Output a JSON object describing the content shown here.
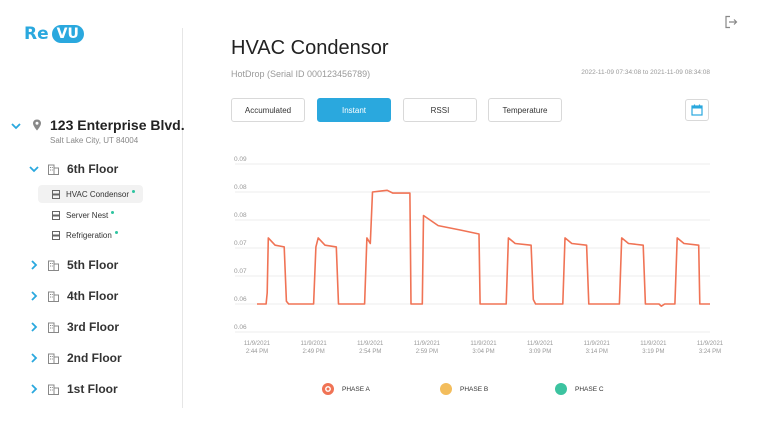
{
  "app": {
    "logo_prefix": "Re",
    "logo_badge": "VU"
  },
  "sidebar": {
    "building": {
      "name": "123 Enterprise Blvd.",
      "address": "Salt Lake City, UT 84004"
    },
    "floors": [
      {
        "label": "6th Floor",
        "expanded": true
      },
      {
        "label": "5th Floor"
      },
      {
        "label": "4th Floor"
      },
      {
        "label": "3rd Floor"
      },
      {
        "label": "2nd Floor"
      },
      {
        "label": "1st Floor"
      }
    ],
    "devices": [
      {
        "label": "HVAC Condensor",
        "active": true
      },
      {
        "label": "Server Nest"
      },
      {
        "label": "Refrigeration"
      }
    ]
  },
  "header": {
    "title": "HVAC Condensor",
    "subtitle": "HotDrop (Serial ID 000123456789)",
    "date_range": "2022-11-09 07:34:08 to 2021-11-09 08:34:08"
  },
  "tabs": [
    {
      "label": "Accumulated"
    },
    {
      "label": "Instant",
      "active": true
    },
    {
      "label": "RSSI"
    },
    {
      "label": "Temperature"
    }
  ],
  "colors": {
    "accent": "#2aa8de",
    "phase_a": "#f07355",
    "phase_b": "#f3bd5c",
    "phase_c": "#3cc3a0",
    "status_dot": "#2ec4a0"
  },
  "chart_data": {
    "type": "line",
    "title": "",
    "xlabel": "",
    "ylabel": "",
    "ylim": [
      0.06,
      0.09
    ],
    "y_ticks": [
      "0.09",
      "0.08",
      "0.08",
      "0.07",
      "0.07",
      "0.06",
      "0.06"
    ],
    "y_tick_values": [
      0.09,
      0.085,
      0.08,
      0.075,
      0.07,
      0.065,
      0.06
    ],
    "x_ticks": [
      {
        "date": "11/9/2021",
        "time": "2:44 PM"
      },
      {
        "date": "11/9/2021",
        "time": "2:49 PM"
      },
      {
        "date": "11/9/2021",
        "time": "2:54 PM"
      },
      {
        "date": "11/9/2021",
        "time": "2:59 PM"
      },
      {
        "date": "11/9/2021",
        "time": "3:04 PM"
      },
      {
        "date": "11/9/2021",
        "time": "3:09 PM"
      },
      {
        "date": "11/9/2021",
        "time": "3:14 PM"
      },
      {
        "date": "11/9/2021",
        "time": "3:19 PM"
      },
      {
        "date": "11/9/2021",
        "time": "3:24 PM"
      }
    ],
    "x_range_minutes": [
      0,
      40
    ],
    "series": [
      {
        "name": "PHASE A",
        "points": [
          [
            0,
            0.065
          ],
          [
            0.8,
            0.065
          ],
          [
            0.9,
            0.067
          ],
          [
            1.0,
            0.0768
          ],
          [
            1.6,
            0.0755
          ],
          [
            2.4,
            0.0752
          ],
          [
            2.6,
            0.0655
          ],
          [
            2.8,
            0.065
          ],
          [
            5.0,
            0.065
          ],
          [
            5.2,
            0.0752
          ],
          [
            5.4,
            0.0768
          ],
          [
            6.0,
            0.0755
          ],
          [
            7.0,
            0.0752
          ],
          [
            7.2,
            0.065
          ],
          [
            9.5,
            0.065
          ],
          [
            9.7,
            0.0768
          ],
          [
            10.0,
            0.0758
          ],
          [
            10.2,
            0.085
          ],
          [
            11.0,
            0.0852
          ],
          [
            11.5,
            0.0853
          ],
          [
            12.0,
            0.0848
          ],
          [
            13.5,
            0.0848
          ],
          [
            13.6,
            0.065
          ],
          [
            14.6,
            0.065
          ],
          [
            14.7,
            0.0808
          ],
          [
            16.0,
            0.079
          ],
          [
            18.0,
            0.0782
          ],
          [
            19.6,
            0.0775
          ],
          [
            19.7,
            0.065
          ],
          [
            22.0,
            0.065
          ],
          [
            22.2,
            0.0768
          ],
          [
            22.8,
            0.0758
          ],
          [
            24.2,
            0.0755
          ],
          [
            24.4,
            0.0658
          ],
          [
            24.6,
            0.065
          ],
          [
            27.0,
            0.065
          ],
          [
            27.2,
            0.0768
          ],
          [
            27.8,
            0.0758
          ],
          [
            29.1,
            0.0755
          ],
          [
            29.3,
            0.065
          ],
          [
            32.0,
            0.065
          ],
          [
            32.2,
            0.0768
          ],
          [
            32.8,
            0.0758
          ],
          [
            34.1,
            0.0755
          ],
          [
            34.3,
            0.065
          ],
          [
            35.5,
            0.065
          ],
          [
            35.7,
            0.0646
          ],
          [
            36.0,
            0.065
          ],
          [
            36.9,
            0.065
          ],
          [
            37.1,
            0.0768
          ],
          [
            37.7,
            0.0758
          ],
          [
            39.0,
            0.0755
          ],
          [
            39.1,
            0.065
          ],
          [
            40.0,
            0.065
          ]
        ]
      }
    ],
    "legend": [
      {
        "name": "PHASE A"
      },
      {
        "name": "PHASE B"
      },
      {
        "name": "PHASE C"
      }
    ]
  }
}
